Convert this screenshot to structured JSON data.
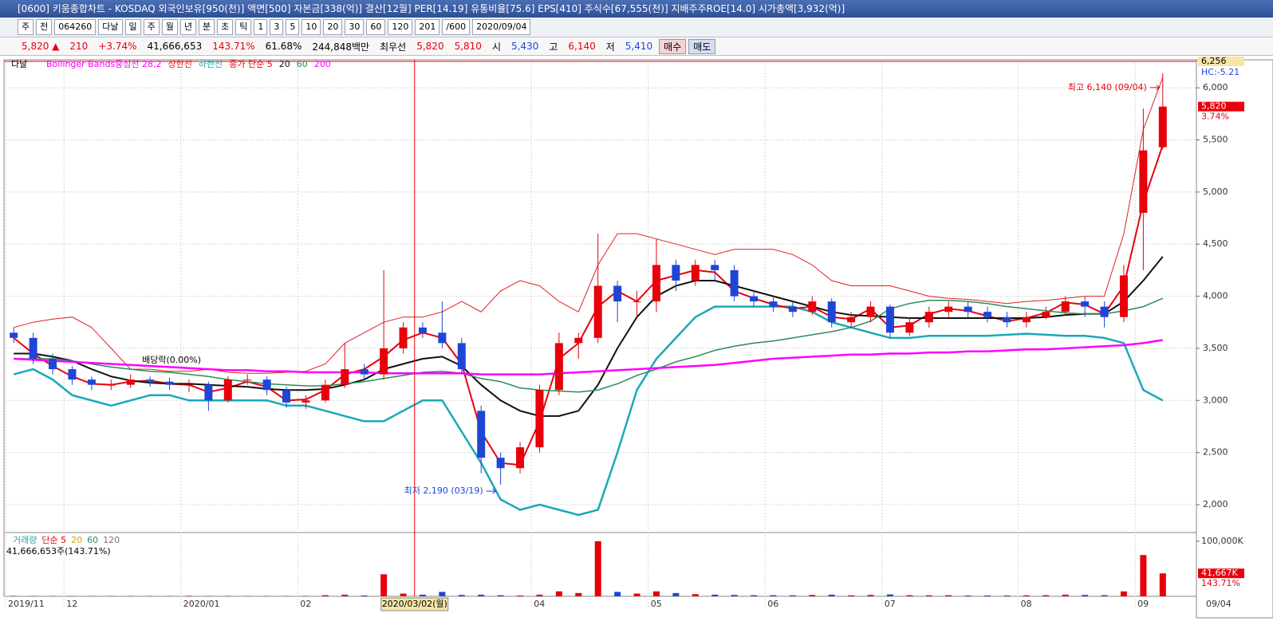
{
  "header": {
    "title": "[0600] 키움종합차트 - KOSDAQ 외국인보유[950(천)] 액면[500] 자본금[338(억)] 결산[12월] PER[14.19] 유통비율[75.6] EPS[410] 주식수[67,555(천)] 지배주주ROE[14.0] 시가총액[3,932(억)]",
    "toolbar": [
      "주",
      "전",
      "064260",
      "다날",
      "일",
      "주",
      "월",
      "년",
      "분",
      "초",
      "틱",
      "1",
      "3",
      "5",
      "10",
      "20",
      "30",
      "60",
      "120",
      "201",
      "/600",
      "2020/09/04"
    ],
    "info": [
      "5,820 ▲",
      "210",
      "+3.74%",
      "41,666,653",
      "143.71%",
      "61.68%",
      "244,848백만",
      "최우선",
      "5,820",
      "5,810",
      "시",
      "5,430",
      "고",
      "6,140",
      "저",
      "5,410",
      "매수",
      "매도"
    ]
  },
  "chart_data": {
    "type": "candlestick",
    "stock_name": "다날",
    "legend_title": "Bollinger Bands중심선 28,2",
    "categories": [
      "2019/11",
      null,
      null,
      "12",
      null,
      null,
      null,
      null,
      null,
      "2020/01",
      null,
      null,
      null,
      null,
      null,
      "02",
      null,
      null,
      null,
      null,
      null,
      null,
      null,
      null,
      null,
      null,
      null,
      "04",
      null,
      null,
      null,
      null,
      null,
      "05",
      null,
      null,
      null,
      null,
      null,
      "06",
      null,
      null,
      null,
      null,
      null,
      "07",
      null,
      null,
      null,
      null,
      null,
      null,
      "08",
      null,
      null,
      null,
      null,
      null,
      "09",
      null
    ],
    "crosshair_label": "2020/03/02(월)",
    "last_date": "09/04",
    "open": [
      3650,
      3600,
      3400,
      3300,
      3200,
      3150,
      3150,
      3200,
      3180,
      3150,
      3150,
      3000,
      3200,
      3200,
      3100,
      2980,
      3000,
      3150,
      3300,
      3250,
      3500,
      3700,
      3650,
      3550,
      2900,
      2450,
      2350,
      2550,
      3100,
      3550,
      3600,
      4100,
      3950,
      3950,
      4300,
      4150,
      4300,
      4250,
      4000,
      3950,
      3900,
      3850,
      3950,
      3750,
      3800,
      3900,
      3650,
      3750,
      3850,
      3900,
      3850,
      3800,
      3750,
      3800,
      3850,
      3950,
      3900,
      3800,
      4800,
      5430
    ],
    "high": [
      3700,
      3650,
      3450,
      3330,
      3230,
      3200,
      3250,
      3230,
      3220,
      3200,
      3180,
      3230,
      3250,
      3230,
      3130,
      3050,
      3200,
      3550,
      3350,
      4250,
      3750,
      3750,
      3950,
      3600,
      2950,
      2500,
      2600,
      3150,
      3650,
      3650,
      4600,
      4150,
      4050,
      4550,
      4350,
      4350,
      4350,
      4300,
      4050,
      4000,
      3950,
      4000,
      3980,
      3850,
      3950,
      3920,
      3800,
      3900,
      3950,
      3950,
      3900,
      3850,
      3850,
      3900,
      4000,
      4000,
      3950,
      4300,
      5800,
      6140
    ],
    "low": [
      3550,
      3350,
      3250,
      3150,
      3100,
      3100,
      3120,
      3130,
      3100,
      3080,
      2900,
      2980,
      3150,
      3050,
      2930,
      2920,
      2980,
      3120,
      3200,
      3200,
      3450,
      3600,
      3500,
      3250,
      2300,
      2190,
      2300,
      2500,
      3050,
      3400,
      3550,
      3750,
      3800,
      3850,
      4050,
      4100,
      4150,
      3950,
      3900,
      3850,
      3800,
      3820,
      3700,
      3700,
      3750,
      3600,
      3620,
      3700,
      3800,
      3800,
      3750,
      3700,
      3700,
      3780,
      3820,
      3800,
      3700,
      3750,
      4250,
      5410
    ],
    "close": [
      3600,
      3400,
      3300,
      3200,
      3150,
      3150,
      3200,
      3180,
      3150,
      3150,
      3000,
      3200,
      3200,
      3100,
      2980,
      3000,
      3150,
      3300,
      3250,
      3500,
      3700,
      3650,
      3550,
      3300,
      2450,
      2350,
      2550,
      3100,
      3550,
      3600,
      4100,
      3950,
      3950,
      4300,
      4150,
      4300,
      4250,
      4000,
      3950,
      3900,
      3850,
      3950,
      3750,
      3800,
      3900,
      3650,
      3750,
      3850,
      3900,
      3850,
      3800,
      3750,
      3800,
      3850,
      3950,
      3900,
      3800,
      4200,
      5400,
      5820
    ],
    "up_color": "#e8000b",
    "down_color": "#1e46d6",
    "series": [
      {
        "name": "상한선",
        "color": "#e02020",
        "width": 1,
        "values": [
          3700,
          3750,
          3780,
          3800,
          3700,
          3500,
          3300,
          3300,
          3280,
          3280,
          3300,
          3270,
          3260,
          3260,
          3270,
          3280,
          3350,
          3550,
          3650,
          3750,
          3800,
          3800,
          3850,
          3950,
          3850,
          4050,
          4150,
          4100,
          3950,
          3850,
          4300,
          4600,
          4600,
          4550,
          4500,
          4450,
          4400,
          4450,
          4450,
          4450,
          4400,
          4300,
          4150,
          4100,
          4100,
          4100,
          4050,
          4000,
          3980,
          3970,
          3950,
          3930,
          3950,
          3960,
          3980,
          4000,
          4000,
          4600,
          5600,
          6100
        ]
      },
      {
        "name": "하한선",
        "color": "#1aa8b8",
        "width": 2.5,
        "values": [
          3250,
          3300,
          3200,
          3050,
          3000,
          2950,
          3000,
          3050,
          3050,
          3000,
          3000,
          3000,
          3000,
          3000,
          2950,
          2950,
          2900,
          2850,
          2800,
          2800,
          2900,
          3000,
          3000,
          2700,
          2400,
          2050,
          1950,
          2000,
          1950,
          1900,
          1950,
          2500,
          3100,
          3400,
          3600,
          3800,
          3900,
          3900,
          3900,
          3900,
          3900,
          3850,
          3750,
          3700,
          3650,
          3600,
          3600,
          3620,
          3620,
          3620,
          3620,
          3630,
          3640,
          3630,
          3620,
          3620,
          3600,
          3550,
          3100,
          3000
        ]
      },
      {
        "name": "종가 단순 5",
        "color": "#e8000b",
        "width": 2,
        "values": [
          3600,
          3450,
          3330,
          3230,
          3160,
          3150,
          3180,
          3190,
          3160,
          3150,
          3080,
          3120,
          3180,
          3130,
          3000,
          3010,
          3100,
          3250,
          3300,
          3420,
          3580,
          3650,
          3600,
          3350,
          2700,
          2400,
          2380,
          2800,
          3400,
          3550,
          3900,
          4050,
          3950,
          4150,
          4200,
          4250,
          4230,
          4050,
          3980,
          3920,
          3880,
          3900,
          3800,
          3780,
          3880,
          3700,
          3720,
          3830,
          3880,
          3860,
          3810,
          3760,
          3790,
          3840,
          3940,
          3920,
          3830,
          4100,
          4900,
          5450
        ]
      },
      {
        "name": "20",
        "color": "#111111",
        "width": 2,
        "values": [
          3450,
          3450,
          3420,
          3380,
          3300,
          3230,
          3190,
          3170,
          3160,
          3160,
          3150,
          3140,
          3130,
          3110,
          3100,
          3100,
          3110,
          3150,
          3200,
          3300,
          3350,
          3400,
          3420,
          3330,
          3150,
          3000,
          2900,
          2850,
          2850,
          2900,
          3150,
          3500,
          3800,
          4000,
          4100,
          4150,
          4150,
          4100,
          4050,
          4000,
          3950,
          3900,
          3850,
          3820,
          3810,
          3800,
          3790,
          3790,
          3790,
          3790,
          3790,
          3790,
          3790,
          3800,
          3820,
          3830,
          3830,
          3950,
          4150,
          4380
        ]
      },
      {
        "name": "60",
        "color": "#2e8b57",
        "width": 1.5,
        "values": [
          3400,
          3400,
          3400,
          3380,
          3350,
          3320,
          3300,
          3280,
          3270,
          3250,
          3230,
          3200,
          3180,
          3160,
          3150,
          3140,
          3140,
          3160,
          3180,
          3210,
          3240,
          3270,
          3280,
          3260,
          3210,
          3180,
          3120,
          3100,
          3090,
          3080,
          3100,
          3160,
          3240,
          3300,
          3370,
          3420,
          3480,
          3520,
          3550,
          3570,
          3600,
          3630,
          3660,
          3700,
          3760,
          3880,
          3930,
          3960,
          3960,
          3950,
          3930,
          3900,
          3880,
          3860,
          3840,
          3830,
          3830,
          3860,
          3900,
          3980
        ]
      },
      {
        "name": "200",
        "color": "#ff00ff",
        "width": 2.5,
        "values": [
          3400,
          3390,
          3380,
          3370,
          3360,
          3350,
          3340,
          3330,
          3320,
          3310,
          3300,
          3290,
          3290,
          3280,
          3280,
          3270,
          3270,
          3270,
          3270,
          3260,
          3260,
          3260,
          3260,
          3260,
          3250,
          3250,
          3250,
          3250,
          3260,
          3270,
          3280,
          3290,
          3300,
          3310,
          3320,
          3330,
          3340,
          3360,
          3380,
          3400,
          3410,
          3420,
          3430,
          3440,
          3440,
          3450,
          3450,
          3460,
          3460,
          3470,
          3470,
          3480,
          3490,
          3490,
          3500,
          3510,
          3520,
          3530,
          3550,
          3580
        ]
      }
    ],
    "ylim": [
      1755,
      6269
    ],
    "yticks": [
      {
        "value": 2000,
        "label": "2,000"
      },
      {
        "value": 2500,
        "label": "2,500"
      },
      {
        "value": 3000,
        "label": "3,000"
      },
      {
        "value": 3500,
        "label": "3,500"
      },
      {
        "value": 4000,
        "label": "4,000"
      },
      {
        "value": 4500,
        "label": "4,500"
      },
      {
        "value": 5000,
        "label": "5,000"
      },
      {
        "value": 5500,
        "label": "5,500"
      },
      {
        "value": 6000,
        "label": "6,000"
      }
    ],
    "grid": true,
    "annotations": {
      "high": "최고 6,140 (09/04)",
      "low": "최저 2,190 (03/19)",
      "dividend": "배당락(0.00%)"
    },
    "price_marks": [
      "6,256",
      "HC:-5.21",
      "5,820",
      "3.74%"
    ],
    "volume": {
      "legend": [
        "거래량",
        "단순 5",
        "20",
        "60",
        "120"
      ],
      "summary": "41,666,653주(143.71%)",
      "values": [
        800,
        600,
        700,
        500,
        600,
        500,
        700,
        600,
        500,
        900,
        600,
        700,
        500,
        600,
        500,
        700,
        2000,
        3000,
        1500,
        40000,
        5000,
        3000,
        8000,
        2500,
        3000,
        2000,
        1500,
        3000,
        9000,
        6000,
        100000,
        8000,
        5000,
        9000,
        6000,
        4000,
        3000,
        2500,
        2000,
        2000,
        1800,
        2500,
        3000,
        1800,
        2500,
        3500,
        2000,
        1800,
        2000,
        1500,
        1500,
        1400,
        1800,
        2000,
        3000,
        2500,
        2000,
        9000,
        75000,
        41667
      ],
      "ylim": [
        0,
        110000
      ],
      "yticks": [
        {
          "value": 100000,
          "label": "100,000K"
        }
      ],
      "marks": [
        "41,667K",
        "143.71%"
      ]
    }
  }
}
